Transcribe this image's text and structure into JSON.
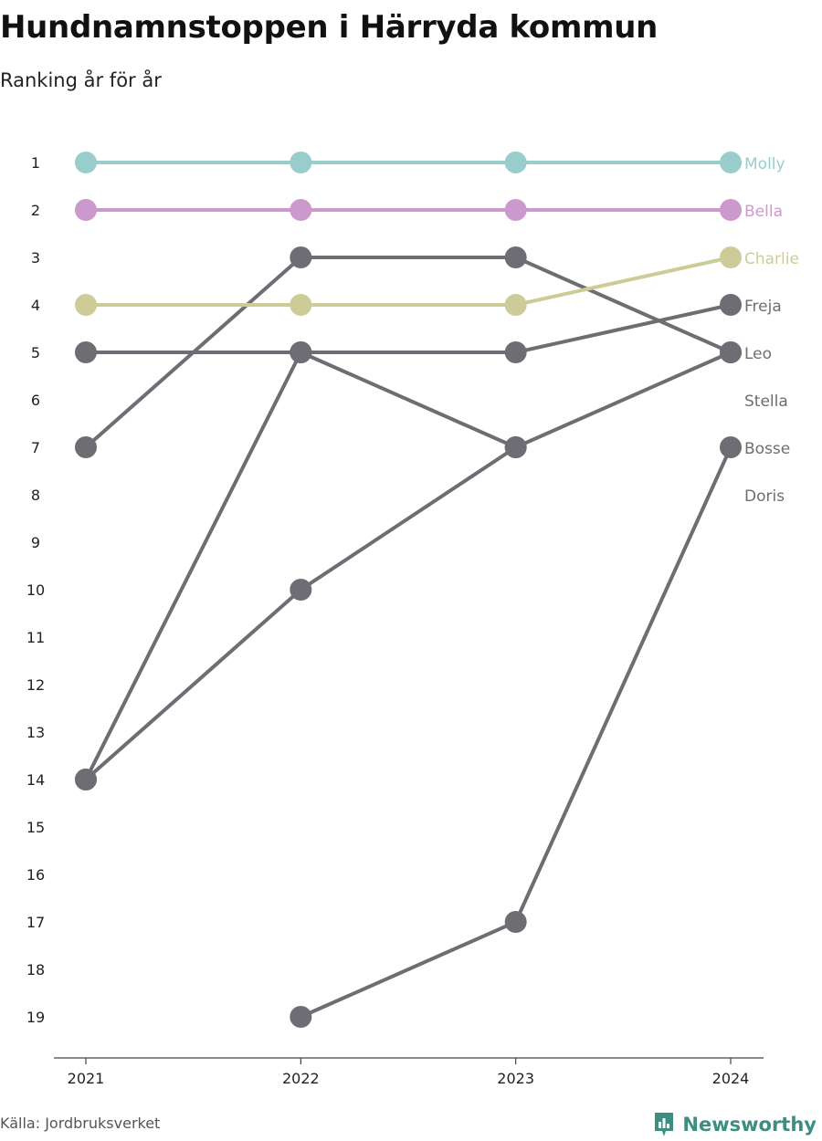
{
  "title": "Hundnamnstoppen i Härryda kommun",
  "subtitle": "Ranking år för år",
  "source": "Källa: Jordbruksverket",
  "brand": {
    "name": "Newsworthy",
    "icon": "bar-chart-pin-icon",
    "color": "#3d8e80"
  },
  "chart_data": {
    "type": "line",
    "x": [
      "2021",
      "2022",
      "2023",
      "2024"
    ],
    "y_ticks": [
      1,
      2,
      3,
      4,
      5,
      6,
      7,
      8,
      9,
      10,
      11,
      12,
      13,
      14,
      15,
      16,
      17,
      18,
      19
    ],
    "ylim": [
      19,
      1
    ],
    "y_reversed": true,
    "grid": false,
    "legend": "labels at right end of lines",
    "series": [
      {
        "name": "Molly",
        "values": [
          1,
          1,
          1,
          1
        ],
        "color": "#99cdcc"
      },
      {
        "name": "Bella",
        "values": [
          2,
          2,
          2,
          2
        ],
        "color": "#cc99cd"
      },
      {
        "name": "Charlie",
        "values": [
          4,
          4,
          4,
          3
        ],
        "color": "#cdcc99"
      },
      {
        "name": "Freja",
        "values": [
          5,
          5,
          5,
          4
        ],
        "color": "#6e6d73"
      },
      {
        "name": "Leo",
        "values": [
          7,
          3,
          3,
          5
        ],
        "color": "#6e6d73"
      },
      {
        "name": "Stella",
        "values": [
          14,
          5,
          7,
          null
        ],
        "color": "#6e6d73"
      },
      {
        "name": "Bosse",
        "values": [
          null,
          19,
          17,
          7
        ],
        "color": "#6e6d73"
      },
      {
        "name": "Doris",
        "values": [
          14,
          10,
          7,
          5
        ],
        "color": "#6e6d73"
      }
    ]
  }
}
